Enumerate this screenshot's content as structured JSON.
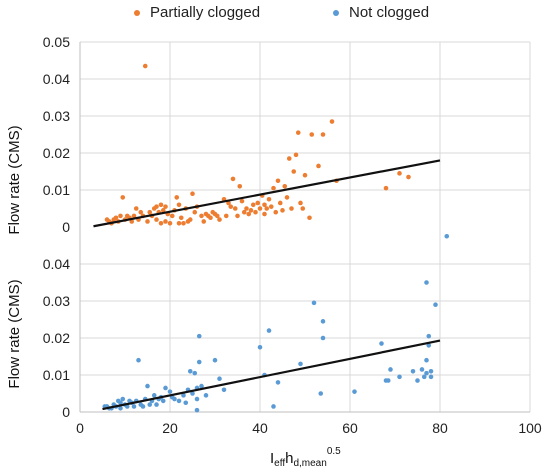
{
  "chart_data": [
    {
      "type": "scatter",
      "panel": "top",
      "ylabel": "Flow rate (CMS)",
      "ylim": [
        0,
        0.05
      ],
      "yticks": [
        "0",
        "0.01",
        "0.02",
        "0.03",
        "0.04",
        "0.05"
      ],
      "xlim": [
        0,
        100
      ],
      "grid": true,
      "series": [
        {
          "name": "Partially clogged",
          "color": "#ED7D31",
          "points": [
            [
              6,
              0.002
            ],
            [
              6.5,
              0.0015
            ],
            [
              7,
              0.001
            ],
            [
              7.5,
              0.002
            ],
            [
              8,
              0.0025
            ],
            [
              8.5,
              0.0015
            ],
            [
              9,
              0.003
            ],
            [
              9.5,
              0.008
            ],
            [
              10,
              0.002
            ],
            [
              10.5,
              0.003
            ],
            [
              11,
              0.0025
            ],
            [
              11.5,
              0.0015
            ],
            [
              12,
              0.003
            ],
            [
              12.5,
              0.005
            ],
            [
              13,
              0.002
            ],
            [
              13.5,
              0.004
            ],
            [
              14,
              0.003
            ],
            [
              14.5,
              0.0435
            ],
            [
              15,
              0.0015
            ],
            [
              15.5,
              0.004
            ],
            [
              16,
              0.003
            ],
            [
              16.5,
              0.005
            ],
            [
              17,
              0.0055
            ],
            [
              17,
              0.002
            ],
            [
              17.5,
              0.004
            ],
            [
              18,
              0.006
            ],
            [
              18,
              0.001
            ],
            [
              18.5,
              0.0045
            ],
            [
              19,
              0.0055
            ],
            [
              19,
              0.0015
            ],
            [
              19.5,
              0.0035
            ],
            [
              20,
              0.001
            ],
            [
              20.5,
              0.003
            ],
            [
              21,
              0.0045
            ],
            [
              21.5,
              0.008
            ],
            [
              22,
              0.001
            ],
            [
              22,
              0.006
            ],
            [
              22.5,
              0.0025
            ],
            [
              23,
              0.001
            ],
            [
              23.5,
              0.005
            ],
            [
              24,
              0.0015
            ],
            [
              24.5,
              0.002
            ],
            [
              25,
              0.009
            ],
            [
              25.5,
              0.004
            ],
            [
              26,
              0.0055
            ],
            [
              27,
              0.003
            ],
            [
              27.5,
              0.0015
            ],
            [
              28,
              0.0035
            ],
            [
              28.5,
              0.003
            ],
            [
              29,
              0.0025
            ],
            [
              29.5,
              0.004
            ],
            [
              30,
              0.0035
            ],
            [
              30.5,
              0.003
            ],
            [
              31,
              0.002
            ],
            [
              32,
              0.0075
            ],
            [
              32.5,
              0.003
            ],
            [
              33,
              0.0065
            ],
            [
              33.5,
              0.0055
            ],
            [
              34,
              0.013
            ],
            [
              34.5,
              0.005
            ],
            [
              35,
              0.003
            ],
            [
              35.5,
              0.011
            ],
            [
              36,
              0.007
            ],
            [
              36.5,
              0.004
            ],
            [
              37,
              0.005
            ],
            [
              37.5,
              0.0035
            ],
            [
              38,
              0.0045
            ],
            [
              38.5,
              0.006
            ],
            [
              39,
              0.004
            ],
            [
              39.5,
              0.0065
            ],
            [
              40,
              0.005
            ],
            [
              40.5,
              0.0085
            ],
            [
              41,
              0.006
            ],
            [
              41,
              0.0035
            ],
            [
              41.5,
              0.005
            ],
            [
              42,
              0.0075
            ],
            [
              42.5,
              0.0055
            ],
            [
              43,
              0.0105
            ],
            [
              43.5,
              0.004
            ],
            [
              44,
              0.0125
            ],
            [
              44.5,
              0.0065
            ],
            [
              45,
              0.0045
            ],
            [
              45.5,
              0.011
            ],
            [
              46,
              0.008
            ],
            [
              46.5,
              0.0185
            ],
            [
              47,
              0.005
            ],
            [
              47.5,
              0.015
            ],
            [
              48,
              0.0195
            ],
            [
              48.5,
              0.0255
            ],
            [
              49,
              0.0065
            ],
            [
              49.5,
              0.005
            ],
            [
              50,
              0.014
            ],
            [
              51,
              0.0025
            ],
            [
              51.5,
              0.025
            ],
            [
              53,
              0.0165
            ],
            [
              54,
              0.025
            ],
            [
              56,
              0.0285
            ],
            [
              57,
              0.0125
            ],
            [
              68,
              0.0105
            ],
            [
              71,
              0.0145
            ],
            [
              73,
              0.0135
            ]
          ]
        }
      ],
      "trendline": {
        "x": [
          3,
          80
        ],
        "y": [
          0.0002,
          0.018
        ]
      }
    },
    {
      "type": "scatter",
      "panel": "bottom",
      "ylabel": "Flow rate (CMS)",
      "ylim": [
        0,
        0.05
      ],
      "yticks": [
        "0",
        "0.01",
        "0.02",
        "0.03",
        "0.04"
      ],
      "xlim": [
        0,
        100
      ],
      "xticks": [
        "0",
        "20",
        "40",
        "60",
        "80",
        "100"
      ],
      "xlabel_main": "I",
      "xlabel_sub1": "eff",
      "xlabel_mid": "h",
      "xlabel_sub2": "d,mean",
      "xlabel_sup": "0.5",
      "grid": true,
      "series": [
        {
          "name": "Not clogged",
          "color": "#5B9BD5",
          "points": [
            [
              5.5,
              0.0015
            ],
            [
              6,
              0.0015
            ],
            [
              6.5,
              0.001
            ],
            [
              7,
              0.001
            ],
            [
              7.5,
              0.002
            ],
            [
              8,
              0.0015
            ],
            [
              8.5,
              0.003
            ],
            [
              9,
              0.001
            ],
            [
              9,
              0.0025
            ],
            [
              9.5,
              0.0035
            ],
            [
              10,
              0.002
            ],
            [
              10.5,
              0.0015
            ],
            [
              11,
              0.003
            ],
            [
              11.5,
              0.0025
            ],
            [
              12,
              0.0015
            ],
            [
              12.5,
              0.003
            ],
            [
              13,
              0.014
            ],
            [
              13.5,
              0.002
            ],
            [
              14,
              0.0015
            ],
            [
              14.5,
              0.0035
            ],
            [
              15,
              0.007
            ],
            [
              15.5,
              0.002
            ],
            [
              16,
              0.003
            ],
            [
              16.5,
              0.0045
            ],
            [
              17,
              0.002
            ],
            [
              17.5,
              0.0035
            ],
            [
              18,
              0.004
            ],
            [
              18.5,
              0.003
            ],
            [
              19,
              0.0065
            ],
            [
              20,
              0.0055
            ],
            [
              20.5,
              0.004
            ],
            [
              21,
              0.0035
            ],
            [
              22,
              0.003
            ],
            [
              23,
              0.0045
            ],
            [
              23.5,
              0.0025
            ],
            [
              24,
              0.006
            ],
            [
              24.5,
              0.011
            ],
            [
              25,
              0.005
            ],
            [
              25.5,
              0.0105
            ],
            [
              26,
              0.0065
            ],
            [
              26,
              0.0035
            ],
            [
              26,
              0.0005
            ],
            [
              26.5,
              0.0135
            ],
            [
              26.5,
              0.0205
            ],
            [
              27,
              0.007
            ],
            [
              28,
              0.0045
            ],
            [
              30,
              0.014
            ],
            [
              31,
              0.009
            ],
            [
              32,
              0.006
            ],
            [
              40,
              0.0175
            ],
            [
              41,
              0.01
            ],
            [
              42,
              0.022
            ],
            [
              43,
              0.0015
            ],
            [
              44,
              0.008
            ],
            [
              49,
              0.013
            ],
            [
              52,
              0.0295
            ],
            [
              53.5,
              0.005
            ],
            [
              54,
              0.0245
            ],
            [
              54,
              0.02
            ],
            [
              61,
              0.0055
            ],
            [
              67,
              0.0185
            ],
            [
              68,
              0.0085
            ],
            [
              68.5,
              0.0085
            ],
            [
              69,
              0.0115
            ],
            [
              71,
              0.0095
            ],
            [
              74,
              0.011
            ],
            [
              75,
              0.0085
            ],
            [
              76,
              0.0115
            ],
            [
              76.5,
              0.0095
            ],
            [
              77,
              0.035
            ],
            [
              77,
              0.0105
            ],
            [
              77,
              0.014
            ],
            [
              77.5,
              0.018
            ],
            [
              77.5,
              0.0205
            ],
            [
              78,
              0.011
            ],
            [
              78,
              0.0095
            ],
            [
              79,
              0.029
            ],
            [
              81.5,
              0.0475
            ]
          ]
        }
      ],
      "trendline": {
        "x": [
          5,
          80
        ],
        "y": [
          0.0008,
          0.0193
        ]
      }
    }
  ]
}
